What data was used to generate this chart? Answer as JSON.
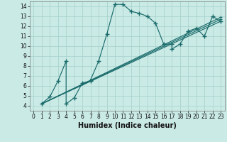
{
  "xlabel": "Humidex (Indice chaleur)",
  "bg_color": "#caeae6",
  "grid_color": "#aad4cf",
  "line_color": "#1a6b6b",
  "xlim": [
    -0.5,
    23.5
  ],
  "ylim": [
    3.5,
    14.5
  ],
  "xticks": [
    0,
    1,
    2,
    3,
    4,
    5,
    6,
    7,
    8,
    9,
    10,
    11,
    12,
    13,
    14,
    15,
    16,
    17,
    18,
    19,
    20,
    21,
    22,
    23
  ],
  "yticks": [
    4,
    5,
    6,
    7,
    8,
    9,
    10,
    11,
    12,
    13,
    14
  ],
  "main_x": [
    1,
    2,
    3,
    4,
    4,
    5,
    6,
    7,
    7,
    8,
    9,
    10,
    11,
    12,
    13,
    14,
    15,
    16,
    17,
    17,
    18,
    19,
    20,
    21,
    22,
    23
  ],
  "main_y": [
    4.2,
    4.9,
    6.5,
    8.5,
    4.2,
    4.8,
    6.3,
    6.5,
    6.6,
    8.5,
    11.2,
    14.2,
    14.2,
    13.5,
    13.3,
    13.0,
    12.3,
    10.2,
    10.2,
    9.7,
    10.2,
    11.5,
    11.8,
    11.0,
    13.0,
    12.5
  ],
  "line2_x": [
    1,
    23
  ],
  "line2_y": [
    4.2,
    12.5
  ],
  "line3_x": [
    1,
    23
  ],
  "line3_y": [
    4.2,
    12.7
  ],
  "line4_x": [
    1,
    23
  ],
  "line4_y": [
    4.2,
    12.9
  ],
  "xlabel_fontsize": 7,
  "tick_fontsize": 5.5
}
